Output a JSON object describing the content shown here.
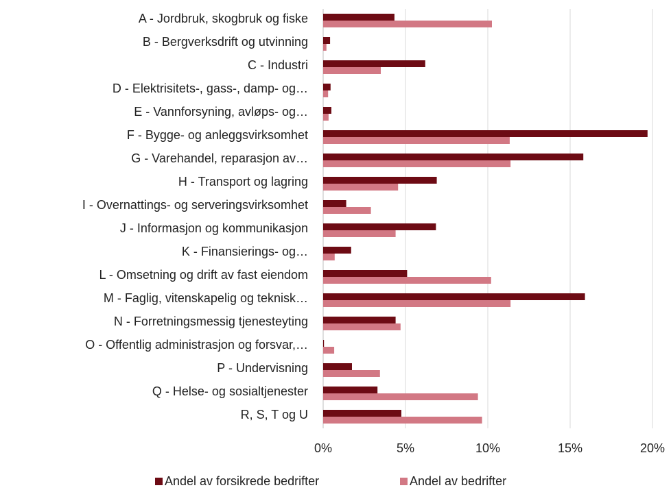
{
  "chart_data": {
    "type": "bar",
    "orientation": "horizontal",
    "categories": [
      "A - Jordbruk, skogbruk og fiske",
      "B - Bergverksdrift og utvinning",
      "C - Industri",
      "D - Elektrisitets-, gass-, damp- og…",
      "E - Vannforsyning, avløps- og…",
      "F - Bygge- og anleggsvirksomhet",
      "G - Varehandel, reparasjon av…",
      "H - Transport og lagring",
      "I - Overnattings- og serveringsvirksomhet",
      "J - Informasjon og kommunikasjon",
      "K - Finansierings- og…",
      "L - Omsetning og drift av fast eiendom",
      "M - Faglig, vitenskapelig og teknisk…",
      "N - Forretningsmessig tjenesteyting",
      "O - Offentlig administrasjon og forsvar,…",
      "P - Undervisning",
      "Q - Helse- og sosialtjenester",
      "R, S, T og U"
    ],
    "series": [
      {
        "name": "Andel av forsikrede bedrifter",
        "color": "#6d0b14",
        "values": [
          4.33,
          0.42,
          6.2,
          0.45,
          0.5,
          19.7,
          15.8,
          6.9,
          1.4,
          6.85,
          1.7,
          5.1,
          15.9,
          4.4,
          0.05,
          1.75,
          3.3,
          4.75
        ]
      },
      {
        "name": "Andel av bedrifter",
        "color": "#d27884",
        "values": [
          10.25,
          0.2,
          3.5,
          0.3,
          0.33,
          11.33,
          11.38,
          4.55,
          2.9,
          4.4,
          0.7,
          10.2,
          11.38,
          4.7,
          0.67,
          3.45,
          9.4,
          9.65
        ]
      }
    ],
    "xlim": [
      0,
      20
    ],
    "xticks": [
      {
        "value": 0,
        "label": "0%"
      },
      {
        "value": 5,
        "label": "5%"
      },
      {
        "value": 10,
        "label": "10%"
      },
      {
        "value": 15,
        "label": "15%"
      },
      {
        "value": 20,
        "label": "20%"
      }
    ],
    "grid": true,
    "legend": "bottom"
  }
}
